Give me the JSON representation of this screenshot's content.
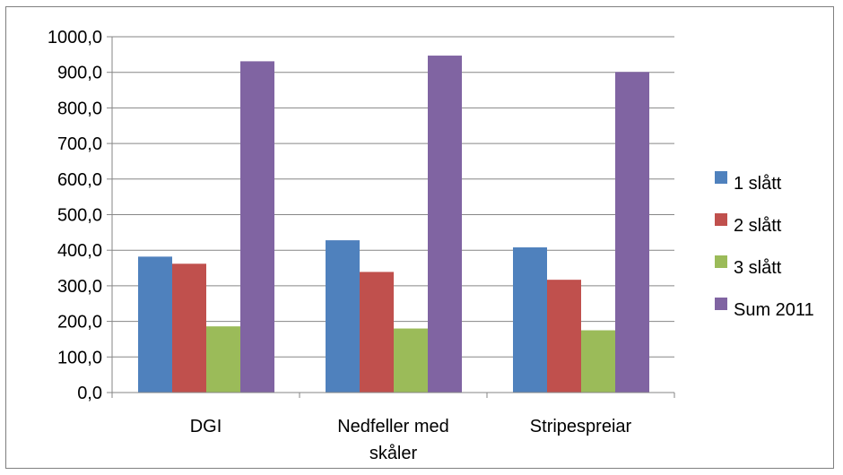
{
  "chart_data": {
    "type": "bar",
    "categories": [
      [
        "DGI"
      ],
      [
        "Nedfeller med",
        "skåler"
      ],
      [
        "Stripespreiar"
      ]
    ],
    "series": [
      {
        "name": "1 slått",
        "color": "#4F81BD",
        "values": [
          382,
          428,
          408
        ]
      },
      {
        "name": "2 slått",
        "color": "#C0504D",
        "values": [
          362,
          339,
          317
        ]
      },
      {
        "name": "3 slått",
        "color": "#9BBB59",
        "values": [
          186,
          180,
          175
        ]
      },
      {
        "name": "Sum 2011",
        "color": "#8064A2",
        "values": [
          931,
          947,
          901
        ]
      }
    ],
    "yticks": [
      "0,0",
      "100,0",
      "200,0",
      "300,0",
      "400,0",
      "500,0",
      "600,0",
      "700,0",
      "800,0",
      "900,0",
      "1000,0"
    ],
    "ylim": [
      0,
      1000
    ],
    "grid": true,
    "legend_position": "right"
  }
}
